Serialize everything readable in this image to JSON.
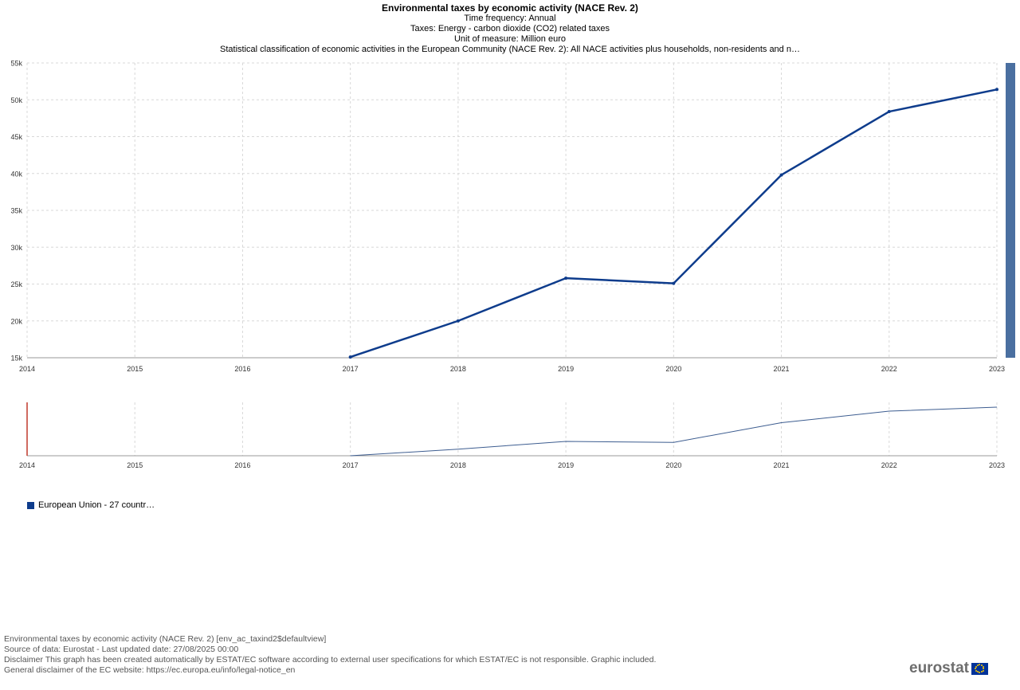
{
  "header": {
    "title": "Environmental taxes by economic activity (NACE Rev. 2)",
    "subtitles": [
      "Time frequency:  Annual",
      "Taxes:  Energy - carbon dioxide (CO2) related taxes",
      "Unit of measure:  Million euro",
      "Statistical classification of economic activities in the European Community (NACE Rev. 2):  All NACE activities plus households, non-residents and n…"
    ]
  },
  "legend": {
    "label": "European Union - 27 countr…",
    "color": "#0e3c8c"
  },
  "footer": {
    "lines": [
      "Environmental taxes by economic activity (NACE Rev. 2) [env_ac_taxind2$defaultview]",
      "Source of data: Eurostat - Last updated date: 27/08/2025 00:00",
      "Disclaimer This graph has been created automatically by ESTAT/EC software according to external user specifications for which ESTAT/EC is not responsible. Graphic included.",
      "General disclaimer of the EC website: https://ec.europa.eu/info/legal-notice_en"
    ]
  },
  "brand": {
    "wordmark": "eurostat"
  },
  "colors": {
    "series": "#0e3c8c",
    "navigator_line": "#3d5d90",
    "scrollbar": "#4a6fa0",
    "grid": "#d8d8d8",
    "navigator_marker": "#c0392b"
  },
  "chart_data": {
    "type": "line",
    "x_tick_labels": [
      "2014",
      "2015",
      "2016",
      "2017",
      "2018",
      "2019",
      "2020",
      "2021",
      "2022",
      "2023"
    ],
    "y_tick_labels": [
      "15k",
      "20k",
      "25k",
      "30k",
      "35k",
      "40k",
      "45k",
      "50k",
      "55k"
    ],
    "xlim": [
      2014,
      2023
    ],
    "ylim": [
      15000,
      55000
    ],
    "y_ticks": [
      15000,
      20000,
      25000,
      30000,
      35000,
      40000,
      45000,
      50000,
      55000
    ],
    "grid": true,
    "legend_position": "bottom-left",
    "series": [
      {
        "name": "European Union - 27 countr…",
        "x": [
          2017,
          2018,
          2019,
          2020,
          2021,
          2022,
          2023
        ],
        "values": [
          15100,
          20000,
          25800,
          25100,
          39800,
          48400,
          51400
        ]
      }
    ],
    "navigator": {
      "xlim": [
        2014,
        2023
      ],
      "tick_labels": [
        "2014",
        "2015",
        "2016",
        "2017",
        "2018",
        "2019",
        "2020",
        "2021",
        "2022",
        "2023"
      ]
    }
  }
}
